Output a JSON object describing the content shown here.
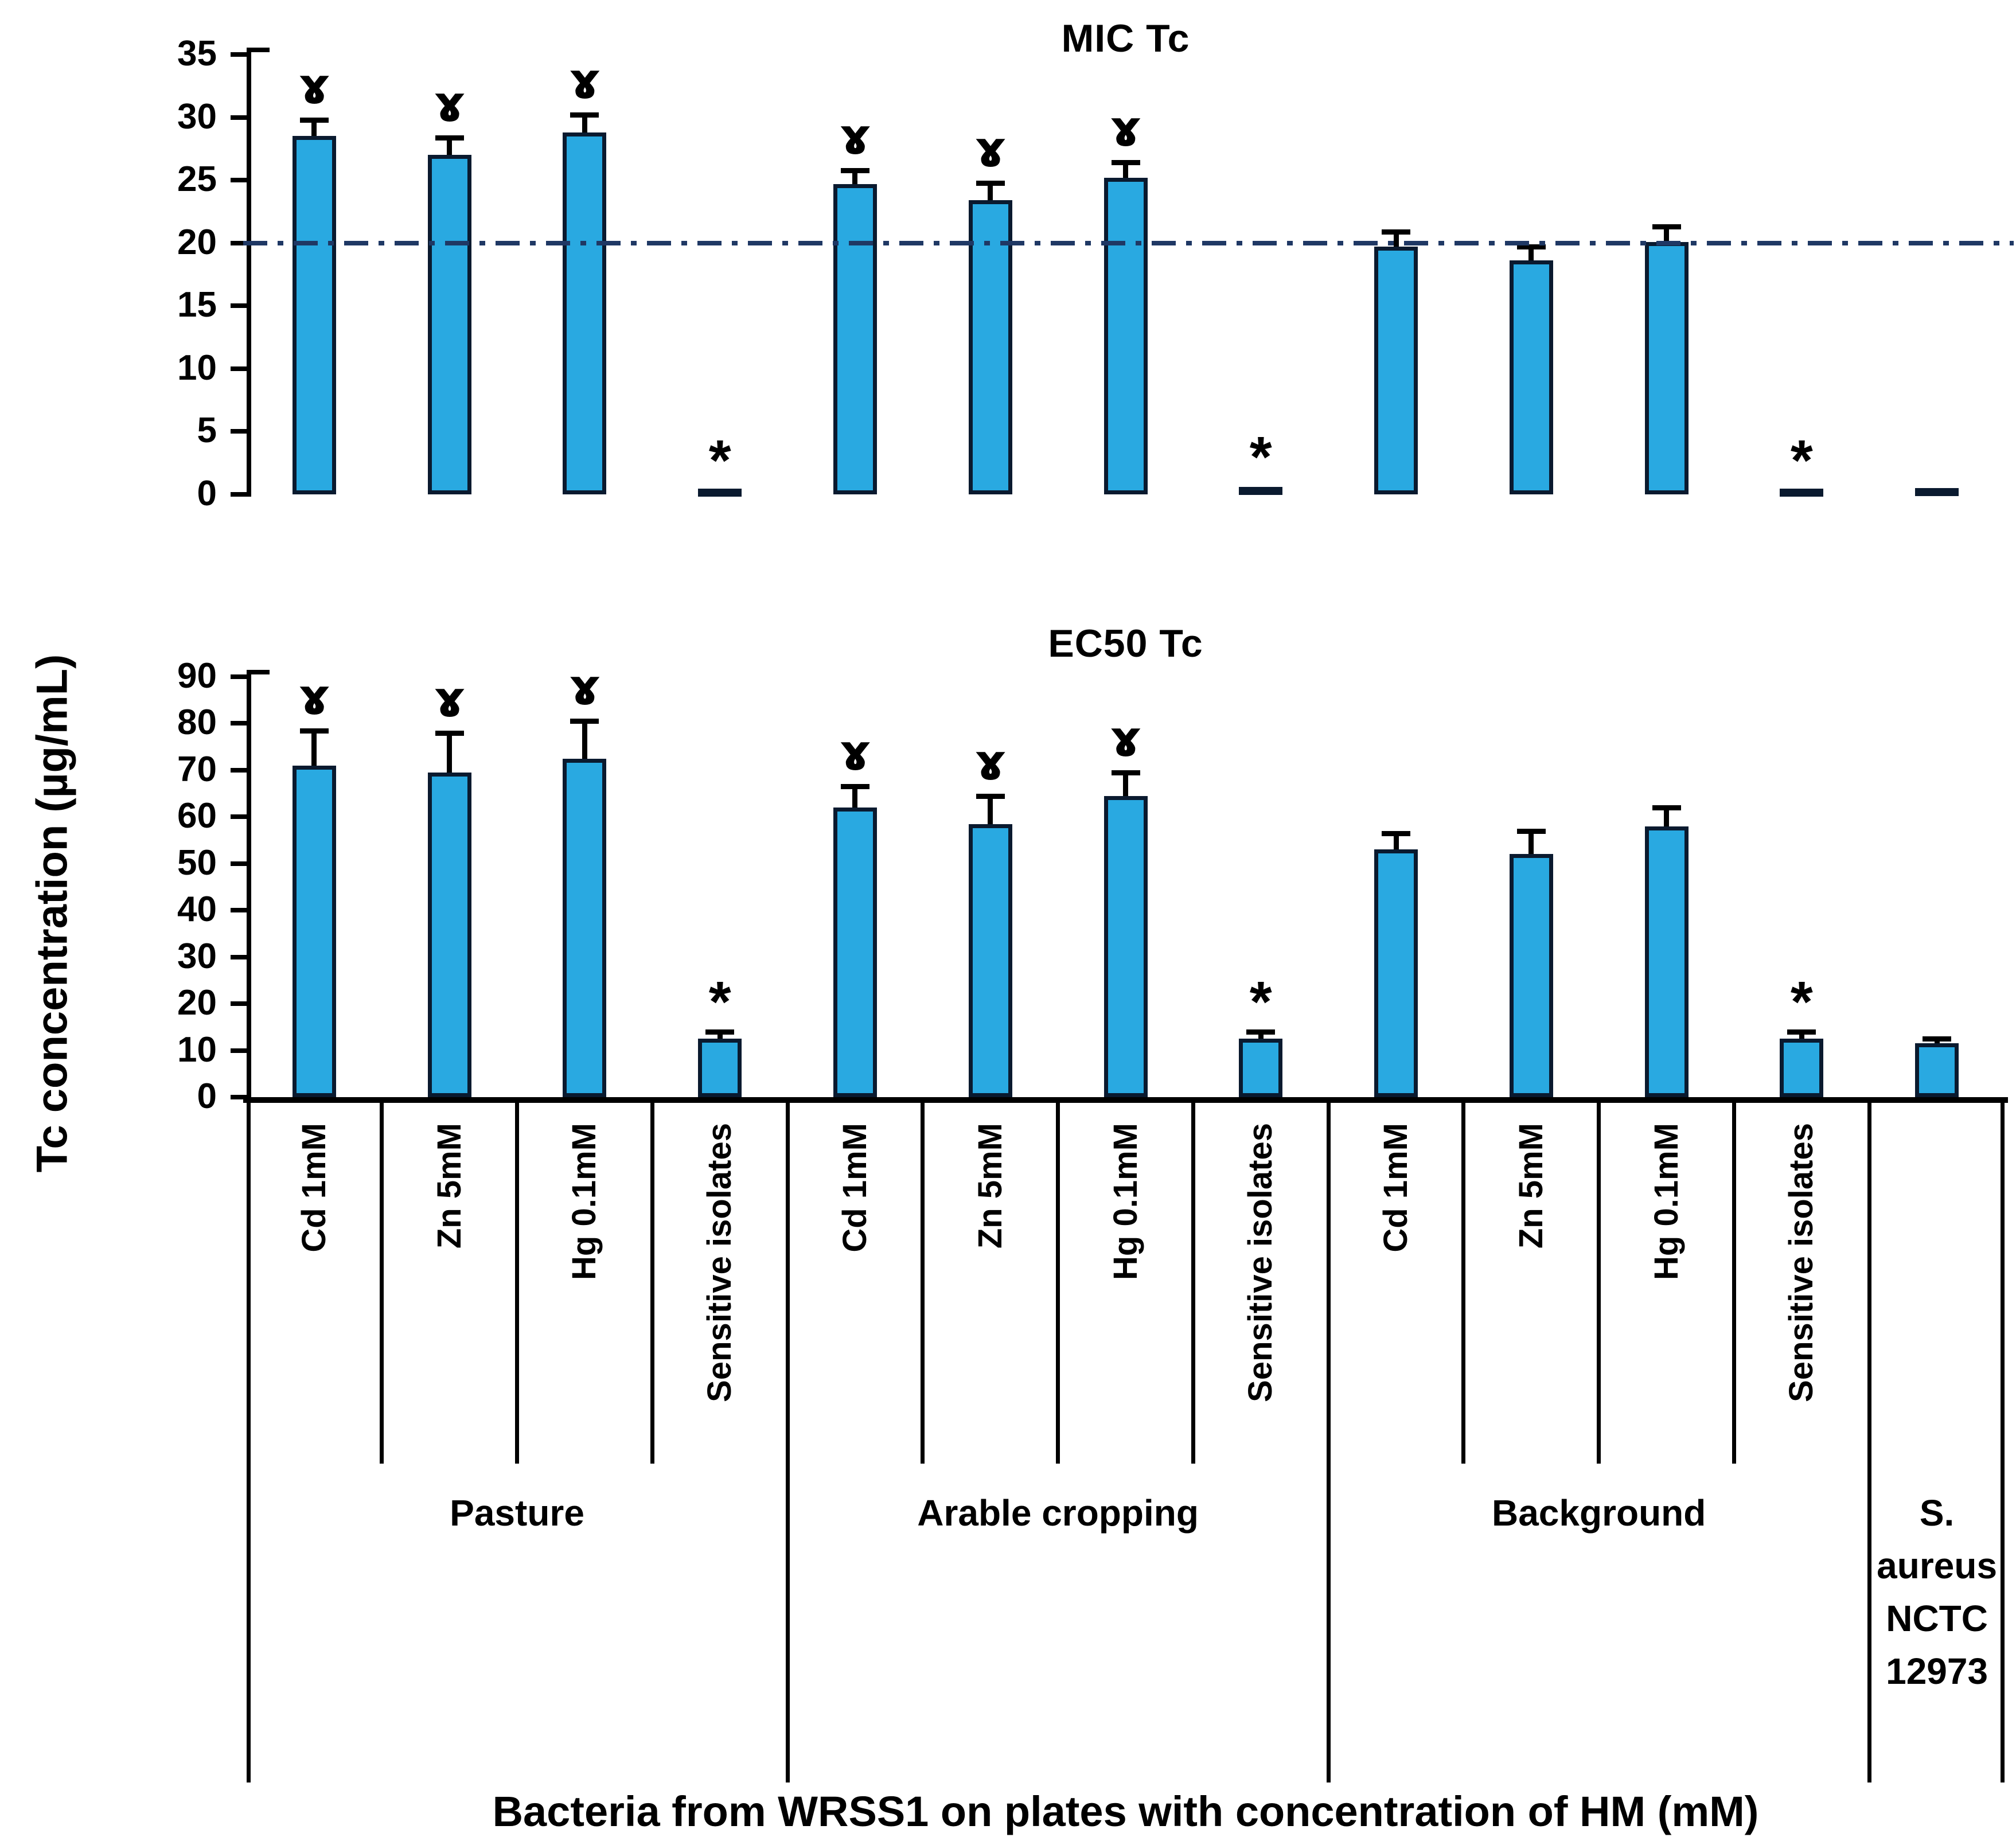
{
  "y_axis_label": "Tc concentration (µg/mL)",
  "x_axis_title": "Bacteria from WRSS1 on plates with concentration of HM (mM)",
  "colors": {
    "bar_fill": "#29A9E1",
    "bar_border": "#0A1A2F",
    "axis": "#000000",
    "error_bar": "#000000",
    "reference_line": "#1F3864",
    "text": "#000000",
    "background": "#FFFFFF"
  },
  "symbols": {
    "resistant_marker": "ɤ",
    "sensitive_marker": "*"
  },
  "x_axis": {
    "categories": [
      "Cd 1mM",
      "Zn 5mM",
      "Hg 0.1mM",
      "Sensitive isolates",
      "Cd 1mM",
      "Zn 5mM",
      "Hg 0.1mM",
      "Sensitive isolates",
      "Cd 1mM",
      "Zn 5mM",
      "Hg 0.1mM",
      "Sensitive isolates",
      ""
    ],
    "groups": [
      {
        "label": "Pasture",
        "span": 4
      },
      {
        "label": "Arable cropping",
        "span": 4
      },
      {
        "label": "Background",
        "span": 4
      },
      {
        "label": "S. aureus NCTC 12973",
        "span": 1
      }
    ]
  },
  "chart_data": [
    {
      "type": "bar",
      "title": "MIC Tc",
      "ylabel": "Tc concentration (µg/mL)",
      "ylim": [
        0,
        35
      ],
      "yticks": [
        0,
        5,
        10,
        15,
        20,
        25,
        30,
        35
      ],
      "grid": false,
      "reference_line": {
        "value": 20,
        "style": "dash-dot",
        "color": "#1F3864"
      },
      "categories": [
        "Cd 1mM",
        "Zn 5mM",
        "Hg 0.1mM",
        "Sensitive isolates",
        "Cd 1mM",
        "Zn 5mM",
        "Hg 0.1mM",
        "Sensitive isolates",
        "Cd 1mM",
        "Zn 5mM",
        "Hg 0.1mM",
        "Sensitive isolates",
        "S. aureus NCTC 12973"
      ],
      "values": [
        28.5,
        27.0,
        28.8,
        0.3,
        24.7,
        23.4,
        25.2,
        0.6,
        19.7,
        18.6,
        20.1,
        0.3,
        0.5
      ],
      "errors": [
        1.3,
        1.4,
        1.4,
        0,
        1.1,
        1.4,
        1.2,
        0,
        1.2,
        1.1,
        1.2,
        0,
        0
      ],
      "annotations": [
        "ɤ",
        "ɤ",
        "ɤ",
        "*",
        "ɤ",
        "ɤ",
        "ɤ",
        "*",
        "",
        "",
        "",
        "*",
        ""
      ]
    },
    {
      "type": "bar",
      "title": "EC50 Tc",
      "ylabel": "Tc concentration (µg/mL)",
      "ylim": [
        0,
        90
      ],
      "yticks": [
        0,
        10,
        20,
        30,
        40,
        50,
        60,
        70,
        80,
        90
      ],
      "grid": false,
      "reference_line": null,
      "categories": [
        "Cd 1mM",
        "Zn 5mM",
        "Hg 0.1mM",
        "Sensitive isolates",
        "Cd 1mM",
        "Zn 5mM",
        "Hg 0.1mM",
        "Sensitive isolates",
        "Cd 1mM",
        "Zn 5mM",
        "Hg 0.1mM",
        "Sensitive isolates",
        "S. aureus NCTC 12973"
      ],
      "values": [
        71.0,
        69.5,
        72.5,
        12.5,
        62.0,
        58.5,
        64.5,
        12.5,
        53.0,
        52.0,
        58.0,
        12.5,
        11.5
      ],
      "errors": [
        7.5,
        8.5,
        8.0,
        1.5,
        4.5,
        6.0,
        5.0,
        1.5,
        3.5,
        5.0,
        4.0,
        1.5,
        1.0
      ],
      "annotations": [
        "ɤ",
        "ɤ",
        "ɤ",
        "*",
        "ɤ",
        "ɤ",
        "ɤ",
        "*",
        "",
        "",
        "",
        "*",
        ""
      ]
    }
  ]
}
